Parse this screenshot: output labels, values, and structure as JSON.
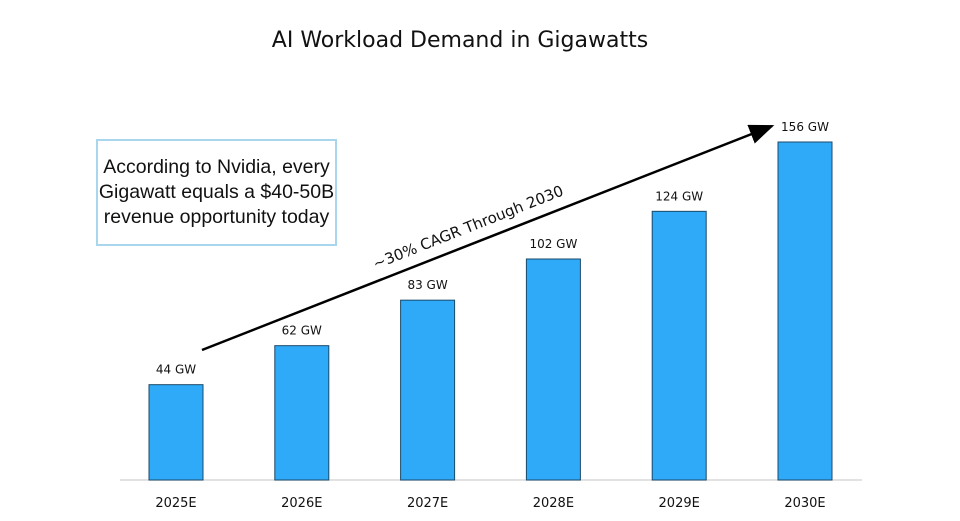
{
  "chart_data": {
    "type": "bar",
    "title": "AI Workload Demand in Gigawatts",
    "categories": [
      "2025E",
      "2026E",
      "2027E",
      "2028E",
      "2029E",
      "2030E"
    ],
    "values": [
      44,
      62,
      83,
      102,
      124,
      156
    ],
    "data_labels": [
      "44 GW",
      "62 GW",
      "83 GW",
      "102 GW",
      "124 GW",
      "156 GW"
    ],
    "unit": "GW",
    "xlabel": "",
    "ylabel": "",
    "ylim": [
      0,
      156
    ],
    "grid": false,
    "bar_color": "#2eaaf8",
    "annotations": {
      "arrow_label": "~30% CAGR Through 2030",
      "note": "According to Nvidia, every Gigawatt equals a $40-50B revenue opportunity today"
    }
  }
}
